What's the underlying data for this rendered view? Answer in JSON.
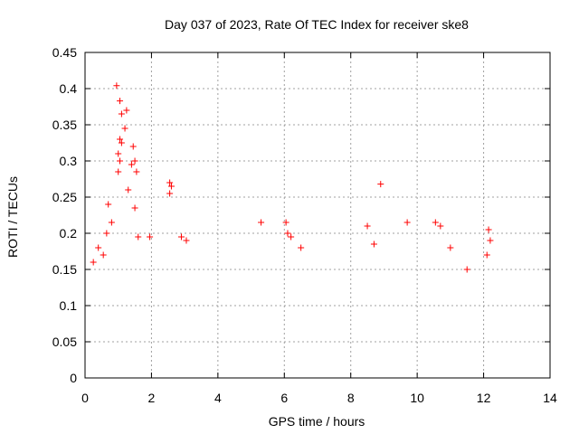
{
  "chart_data": {
    "type": "scatter",
    "title": "Day 037 of 2023, Rate Of TEC Index for receiver ske8",
    "xlabel": "GPS time / hours",
    "ylabel": "ROTI / TECUs",
    "xlim": [
      0,
      14
    ],
    "ylim": [
      0,
      0.45
    ],
    "x_ticks": [
      0,
      2,
      4,
      6,
      8,
      10,
      12,
      14
    ],
    "y_ticks": [
      0,
      0.05,
      0.1,
      0.15,
      0.2,
      0.25,
      0.3,
      0.35,
      0.4,
      0.45
    ],
    "x_tick_labels": [
      "0",
      "2",
      "4",
      "6",
      "8",
      "10",
      "12",
      "14"
    ],
    "y_tick_labels": [
      "0",
      "0.05",
      "0.1",
      "0.15",
      "0.2",
      "0.25",
      "0.3",
      "0.35",
      "0.4",
      "0.45"
    ],
    "grid": true,
    "marker": "plus",
    "color": "#ff0000",
    "series": [
      {
        "points": [
          [
            0.95,
            0.404
          ],
          [
            1.05,
            0.383
          ],
          [
            1.1,
            0.365
          ],
          [
            1.25,
            0.37
          ],
          [
            1.2,
            0.345
          ],
          [
            1.05,
            0.33
          ],
          [
            1.1,
            0.325
          ],
          [
            1.0,
            0.31
          ],
          [
            1.05,
            0.3
          ],
          [
            1.0,
            0.285
          ],
          [
            1.3,
            0.26
          ],
          [
            1.45,
            0.32
          ],
          [
            1.5,
            0.3
          ],
          [
            1.4,
            0.295
          ],
          [
            1.55,
            0.285
          ],
          [
            1.5,
            0.235
          ],
          [
            2.55,
            0.27
          ],
          [
            2.55,
            0.255
          ],
          [
            2.6,
            0.265
          ],
          [
            8.9,
            0.268
          ],
          [
            0.7,
            0.24
          ],
          [
            0.8,
            0.215
          ],
          [
            0.65,
            0.2
          ],
          [
            1.6,
            0.195
          ],
          [
            1.95,
            0.195
          ],
          [
            2.9,
            0.195
          ],
          [
            3.05,
            0.19
          ],
          [
            5.3,
            0.215
          ],
          [
            6.05,
            0.215
          ],
          [
            6.1,
            0.2
          ],
          [
            6.2,
            0.195
          ],
          [
            6.5,
            0.18
          ],
          [
            8.5,
            0.21
          ],
          [
            8.7,
            0.185
          ],
          [
            9.7,
            0.215
          ],
          [
            10.55,
            0.215
          ],
          [
            10.7,
            0.21
          ],
          [
            11.0,
            0.18
          ],
          [
            12.15,
            0.205
          ],
          [
            12.2,
            0.19
          ],
          [
            12.1,
            0.17
          ],
          [
            11.5,
            0.15
          ],
          [
            0.4,
            0.18
          ],
          [
            0.25,
            0.16
          ],
          [
            0.55,
            0.17
          ]
        ]
      }
    ]
  }
}
